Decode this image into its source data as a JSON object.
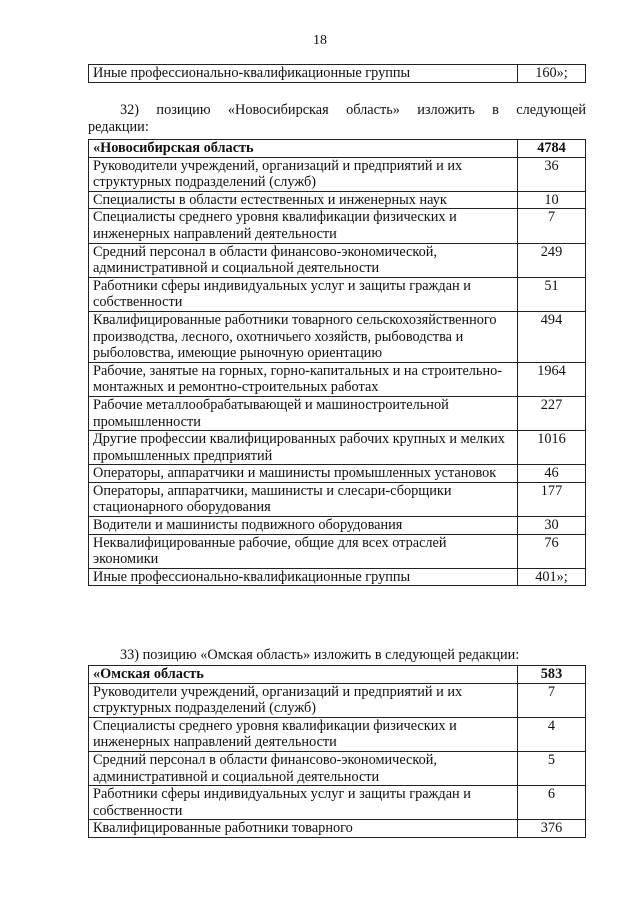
{
  "page_number": "18",
  "table_prev": {
    "rows": [
      {
        "label": "Иные профессионально-квалификационные группы",
        "value": "160»;"
      }
    ]
  },
  "para32": {
    "line1": "32) позицию «Новосибирская область» изложить в следующей",
    "line2": "редакции:"
  },
  "table_novosibirsk": {
    "rows": [
      {
        "label": "«Новосибирская область",
        "value": "4784",
        "bold": true
      },
      {
        "label": "Руководители учреждений, организаций и предприятий и их структурных подразделений (служб)",
        "value": "36"
      },
      {
        "label": "Специалисты в области естественных и инженерных наук",
        "value": "10"
      },
      {
        "label": "Специалисты среднего уровня квалификации физических и инженерных направлений деятельности",
        "value": "7"
      },
      {
        "label": "Средний персонал в области финансово-экономической, административной и социальной деятельности",
        "value": "249"
      },
      {
        "label": "Работники сферы индивидуальных услуг и защиты граждан и собственности",
        "value": "51"
      },
      {
        "label": "Квалифицированные работники товарного сельскохозяйственного производства, лесного, охотничьего хозяйств, рыбоводства и рыболовства, имеющие рыночную ориентацию",
        "value": "494"
      },
      {
        "label": "Рабочие, занятые на горных, горно-капитальных и на строительно-монтажных и ремонтно-строительных работах",
        "value": "1964"
      },
      {
        "label": "Рабочие металлообрабатывающей и машиностроительной промышленности",
        "value": "227"
      },
      {
        "label": "Другие профессии квалифицированных рабочих крупных и мелких промышленных предприятий",
        "value": "1016"
      },
      {
        "label": "Операторы, аппаратчики и машинисты промышленных установок",
        "value": "46"
      },
      {
        "label": "Операторы, аппаратчики, машинисты и слесари-сборщики стационарного оборудования",
        "value": "177"
      },
      {
        "label": "Водители и машинисты подвижного оборудования",
        "value": "30"
      },
      {
        "label": "Неквалифицированные рабочие, общие для всех отраслей экономики",
        "value": "76"
      },
      {
        "label": "Иные профессионально-квалификационные группы",
        "value": "401»;"
      }
    ]
  },
  "para33": {
    "text": "33) позицию «Омская область» изложить в следующей редакции:"
  },
  "table_omsk": {
    "rows": [
      {
        "label": "«Омская область",
        "value": "583",
        "bold": true
      },
      {
        "label": "Руководители учреждений, организаций и предприятий и их структурных подразделений (служб)",
        "value": "7"
      },
      {
        "label": "Специалисты среднего уровня квалификации физических и инженерных направлений деятельности",
        "value": "4"
      },
      {
        "label": "Средний персонал в области финансово-экономической, административной и социальной деятельности",
        "value": "5"
      },
      {
        "label": "Работники сферы индивидуальных услуг и защиты граждан и собственности",
        "value": "6"
      },
      {
        "label": "Квалифицированные работники товарного",
        "value": "376"
      }
    ]
  }
}
